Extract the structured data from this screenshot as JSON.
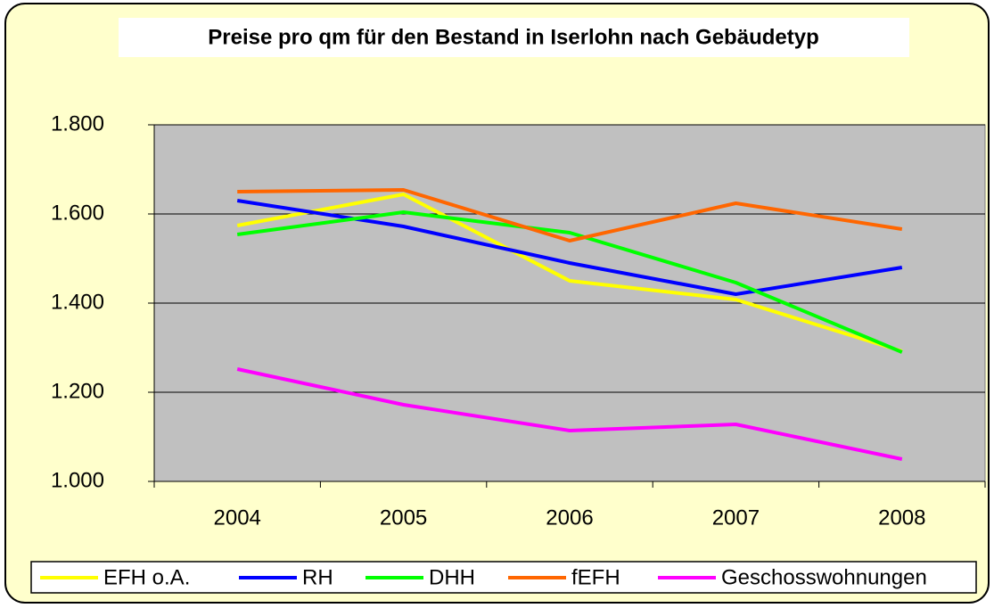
{
  "chart_data": {
    "type": "line",
    "title": "Preise pro qm für den Bestand in Iserlohn nach Gebäudetyp",
    "categories": [
      "2004",
      "2005",
      "2006",
      "2007",
      "2008"
    ],
    "series": [
      {
        "name": "EFH o.A.",
        "color": "#ffff00",
        "values": [
          1574,
          1644,
          1450,
          1408,
          1292
        ]
      },
      {
        "name": "RH",
        "color": "#0000ff",
        "values": [
          1630,
          1572,
          1490,
          1420,
          1480
        ]
      },
      {
        "name": "DHH",
        "color": "#00ff00",
        "values": [
          1554,
          1604,
          1558,
          1446,
          1290
        ]
      },
      {
        "name": "fEFH",
        "color": "#ff6600",
        "values": [
          1650,
          1654,
          1540,
          1624,
          1566
        ]
      },
      {
        "name": "Geschosswohnungen",
        "color": "#ff00ff",
        "values": [
          1252,
          1172,
          1114,
          1128,
          1050
        ]
      }
    ],
    "ylim": [
      1000,
      1800
    ],
    "yticks": [
      {
        "value": 1000,
        "label": "1.000"
      },
      {
        "value": 1200,
        "label": "1.200"
      },
      {
        "value": 1400,
        "label": "1.400"
      },
      {
        "value": 1600,
        "label": "1.600"
      },
      {
        "value": 1800,
        "label": "1.800"
      }
    ],
    "grid": true,
    "legend": "bottom"
  }
}
